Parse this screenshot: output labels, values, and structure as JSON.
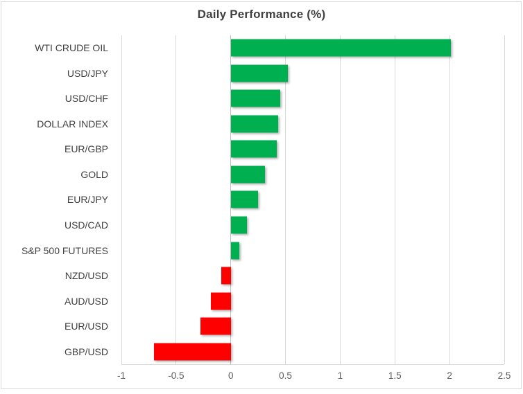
{
  "chart_data": {
    "type": "bar",
    "orientation": "horizontal",
    "title": "Daily Performance (%)",
    "categories": [
      "WTI CRUDE OIL",
      "USD/JPY",
      "USD/CHF",
      "DOLLAR INDEX",
      "EUR/GBP",
      "GOLD",
      "EUR/JPY",
      "USD/CAD",
      "S&P 500 FUTURES",
      "NZD/USD",
      "AUD/USD",
      "EUR/USD",
      "GBP/USD"
    ],
    "values": [
      2.01,
      0.52,
      0.45,
      0.43,
      0.42,
      0.31,
      0.25,
      0.15,
      0.08,
      -0.09,
      -0.18,
      -0.28,
      -0.7
    ],
    "xlabel": "",
    "ylabel": "",
    "xlim": [
      -1,
      2.5
    ],
    "xticks": [
      -1,
      -0.5,
      0,
      0.5,
      1,
      1.5,
      2,
      2.5
    ],
    "xtick_labels": [
      "-1",
      "-0.5",
      "0",
      "0.5",
      "1",
      "1.5",
      "2",
      "2.5"
    ],
    "grid": true,
    "legend": false,
    "colors": {
      "positive": "#00B050",
      "negative": "#FF0000",
      "gridline": "#D9D9D9",
      "zero_axis_line": "#BFBFBF",
      "chart_border": "#D9D9D9",
      "title_text": "#404040",
      "category_label_text": "#404040",
      "tick_label_text": "#595959",
      "background": "#FFFFFF"
    }
  }
}
